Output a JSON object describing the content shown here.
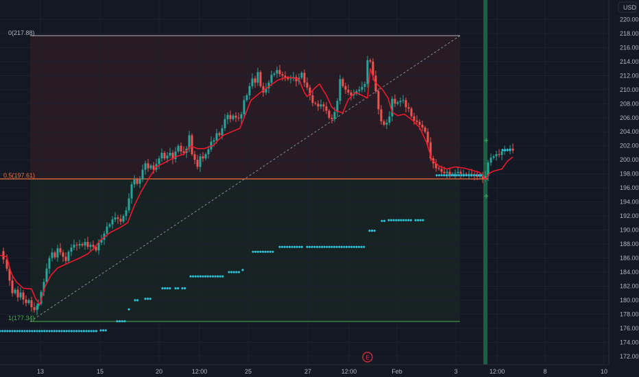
{
  "currency": "USD",
  "y_axis": {
    "ticks": [
      "172.00",
      "174.00",
      "176.00",
      "178.00",
      "180.00",
      "182.00",
      "184.00",
      "186.00",
      "188.00",
      "190.00",
      "192.00",
      "194.00",
      "196.00",
      "198.00",
      "200.00",
      "202.00",
      "204.00",
      "206.00",
      "208.00",
      "210.00",
      "212.00",
      "214.00",
      "216.00",
      "218.00",
      "220.00"
    ]
  },
  "x_axis": {
    "ticks": [
      "13",
      "15",
      "20",
      "12:00",
      "25",
      "27",
      "12:00",
      "Feb",
      "3",
      "12:00",
      "8",
      "10"
    ]
  },
  "fib": {
    "level_0": "0(217.88)",
    "level_05": "0.5(197.61)",
    "level_1": "1(177.34)"
  },
  "event_marker": "E",
  "colors": {
    "background": "#141823",
    "up": "#26a69a",
    "down": "#ef5350",
    "ma_line": "#f0192d",
    "dots": "#2fc0d6",
    "fib_top": "#b2b5be",
    "fib_mid": "#f2713c",
    "fib_bottom": "#4caf50",
    "vertical_band": "#1e5e45"
  },
  "chart_data": {
    "type": "candlestick",
    "price_range": [
      171.5,
      221.7
    ],
    "fib_levels": [
      {
        "label": "0",
        "price": 217.88
      },
      {
        "label": "0.5",
        "price": 197.61
      },
      {
        "label": "1",
        "price": 177.34
      }
    ],
    "price_path": [
      [
        0,
        187.0
      ],
      [
        5,
        185.8
      ],
      [
        10,
        184.5
      ],
      [
        14,
        182.8
      ],
      [
        18,
        181.0
      ],
      [
        22,
        181.5
      ],
      [
        26,
        180.4
      ],
      [
        30,
        181.1
      ],
      [
        34,
        180.1
      ],
      [
        38,
        179.6
      ],
      [
        42,
        180.0
      ],
      [
        46,
        179.0
      ],
      [
        50,
        178.6
      ],
      [
        54,
        179.2
      ],
      [
        56,
        179.5
      ],
      [
        60,
        181.2
      ],
      [
        64,
        182.6
      ],
      [
        68,
        184.5
      ],
      [
        72,
        186.0
      ],
      [
        76,
        186.8
      ],
      [
        80,
        186.1
      ],
      [
        84,
        187.4
      ],
      [
        88,
        186.8
      ],
      [
        92,
        186.2
      ],
      [
        96,
        185.6
      ],
      [
        100,
        186.9
      ],
      [
        104,
        187.5
      ],
      [
        108,
        187.9
      ],
      [
        112,
        187.8
      ],
      [
        116,
        188.0
      ],
      [
        120,
        187.8
      ],
      [
        124,
        188.3
      ],
      [
        128,
        187.6
      ],
      [
        132,
        187.9
      ],
      [
        136,
        187.6
      ],
      [
        140,
        187.1
      ],
      [
        144,
        188.2
      ],
      [
        148,
        188.6
      ],
      [
        152,
        189.5
      ],
      [
        156,
        190.5
      ],
      [
        160,
        190.8
      ],
      [
        164,
        191.5
      ],
      [
        168,
        191.8
      ],
      [
        172,
        191.6
      ],
      [
        176,
        191.2
      ],
      [
        180,
        192.0
      ],
      [
        184,
        192.8
      ],
      [
        188,
        194.5
      ],
      [
        192,
        196.5
      ],
      [
        196,
        197.2
      ],
      [
        200,
        196.6
      ],
      [
        204,
        197.2
      ],
      [
        208,
        198.6
      ],
      [
        212,
        199.5
      ],
      [
        216,
        198.8
      ],
      [
        220,
        199.2
      ],
      [
        224,
        198.6
      ],
      [
        228,
        199.4
      ],
      [
        232,
        200.2
      ],
      [
        236,
        201.0
      ],
      [
        240,
        200.2
      ],
      [
        244,
        200.6
      ],
      [
        248,
        201.0
      ],
      [
        252,
        200.1
      ],
      [
        256,
        201.2
      ],
      [
        260,
        202.0
      ],
      [
        264,
        201.2
      ],
      [
        268,
        201.0
      ],
      [
        272,
        201.6
      ],
      [
        276,
        203.5
      ],
      [
        280,
        200.8
      ],
      [
        284,
        200.0
      ],
      [
        288,
        199.0
      ],
      [
        292,
        200.5
      ],
      [
        296,
        200.2
      ],
      [
        300,
        200.8
      ],
      [
        304,
        201.5
      ],
      [
        308,
        202.6
      ],
      [
        312,
        202.8
      ],
      [
        316,
        203.8
      ],
      [
        320,
        203.5
      ],
      [
        324,
        204.5
      ],
      [
        328,
        205.8
      ],
      [
        332,
        206.4
      ],
      [
        336,
        205.8
      ],
      [
        340,
        206.3
      ],
      [
        344,
        206.0
      ],
      [
        348,
        205.9
      ],
      [
        352,
        206.5
      ],
      [
        356,
        208.5
      ],
      [
        360,
        209.2
      ],
      [
        364,
        210.5
      ],
      [
        368,
        211.6
      ],
      [
        372,
        211.0
      ],
      [
        376,
        212.5
      ],
      [
        380,
        210.5
      ],
      [
        384,
        209.6
      ],
      [
        388,
        210.2
      ],
      [
        392,
        211.0
      ],
      [
        396,
        212.1
      ],
      [
        400,
        212.3
      ],
      [
        404,
        212.8
      ],
      [
        408,
        212.2
      ],
      [
        412,
        212.0
      ],
      [
        416,
        211.7
      ],
      [
        420,
        211.5
      ],
      [
        424,
        211.6
      ],
      [
        428,
        211.8
      ],
      [
        432,
        211.2
      ],
      [
        436,
        211.7
      ],
      [
        440,
        212.4
      ],
      [
        444,
        211.0
      ],
      [
        448,
        210.3
      ],
      [
        452,
        209.2
      ],
      [
        456,
        208.1
      ],
      [
        460,
        208.0
      ],
      [
        464,
        207.6
      ],
      [
        468,
        207.9
      ],
      [
        472,
        207.6
      ],
      [
        476,
        207.0
      ],
      [
        480,
        206.0
      ],
      [
        484,
        205.8
      ],
      [
        488,
        206.8
      ],
      [
        492,
        208.4
      ],
      [
        496,
        211.5
      ],
      [
        500,
        210.5
      ],
      [
        504,
        210.0
      ],
      [
        508,
        209.6
      ],
      [
        512,
        209.2
      ],
      [
        516,
        209.4
      ],
      [
        520,
        209.8
      ],
      [
        524,
        210.0
      ],
      [
        528,
        210.4
      ],
      [
        532,
        210.8
      ],
      [
        536,
        214.2
      ],
      [
        540,
        214.0
      ],
      [
        544,
        212.0
      ],
      [
        548,
        209.8
      ],
      [
        552,
        207.2
      ],
      [
        556,
        205.5
      ],
      [
        560,
        205.0
      ],
      [
        564,
        205.3
      ],
      [
        568,
        206.2
      ],
      [
        572,
        208.7
      ],
      [
        576,
        208.0
      ],
      [
        580,
        208.2
      ],
      [
        584,
        208.4
      ],
      [
        588,
        208.5
      ],
      [
        592,
        207.5
      ],
      [
        596,
        207.3
      ],
      [
        600,
        206.2
      ],
      [
        604,
        205.6
      ],
      [
        608,
        205.4
      ],
      [
        612,
        205.0
      ],
      [
        616,
        204.6
      ],
      [
        620,
        204.0
      ],
      [
        624,
        202.5
      ],
      [
        628,
        200.2
      ],
      [
        632,
        199.5
      ],
      [
        636,
        198.8
      ],
      [
        640,
        198.7
      ],
      [
        644,
        198.3
      ],
      [
        648,
        198.1
      ],
      [
        652,
        198.3
      ],
      [
        656,
        197.9
      ],
      [
        660,
        198.0
      ],
      [
        664,
        198.1
      ],
      [
        668,
        198.3
      ],
      [
        672,
        198.0
      ],
      [
        676,
        198.0
      ],
      [
        680,
        197.9
      ],
      [
        684,
        198.0
      ],
      [
        688,
        197.9
      ],
      [
        692,
        197.8
      ],
      [
        696,
        197.6
      ],
      [
        700,
        197.8
      ],
      [
        704,
        197.3
      ],
      [
        708,
        197.7
      ],
      [
        712,
        199.6
      ],
      [
        716,
        200.3
      ],
      [
        720,
        200.5
      ],
      [
        724,
        200.8
      ],
      [
        728,
        200.7
      ],
      [
        732,
        201.2
      ],
      [
        736,
        201.4
      ],
      [
        740,
        201.4
      ],
      [
        744,
        201.6
      ],
      [
        748,
        201.3
      ]
    ],
    "ma_path": [
      [
        0,
        186.4
      ],
      [
        10,
        186.2
      ],
      [
        14,
        184.6
      ],
      [
        18,
        183.5
      ],
      [
        24,
        182.6
      ],
      [
        34,
        181.7
      ],
      [
        46,
        181.6
      ],
      [
        52,
        180.2
      ],
      [
        58,
        179.4
      ],
      [
        66,
        182.0
      ],
      [
        74,
        183.5
      ],
      [
        84,
        184.6
      ],
      [
        100,
        185.3
      ],
      [
        116,
        186.0
      ],
      [
        128,
        186.6
      ],
      [
        136,
        187.3
      ],
      [
        146,
        188.5
      ],
      [
        160,
        189.6
      ],
      [
        174,
        190.3
      ],
      [
        186,
        191.0
      ],
      [
        196,
        193.5
      ],
      [
        206,
        195.5
      ],
      [
        218,
        197.5
      ],
      [
        228,
        199.0
      ],
      [
        242,
        199.7
      ],
      [
        258,
        200.5
      ],
      [
        268,
        200.8
      ],
      [
        278,
        202.0
      ],
      [
        288,
        201.6
      ],
      [
        298,
        201.6
      ],
      [
        312,
        202.1
      ],
      [
        318,
        202.8
      ],
      [
        326,
        203.5
      ],
      [
        338,
        204.0
      ],
      [
        350,
        204.5
      ],
      [
        356,
        206.0
      ],
      [
        366,
        208.5
      ],
      [
        380,
        209.6
      ],
      [
        394,
        210.6
      ],
      [
        406,
        211.4
      ],
      [
        420,
        211.8
      ],
      [
        436,
        211.5
      ],
      [
        440,
        210.5
      ],
      [
        444,
        209.6
      ],
      [
        448,
        209.0
      ],
      [
        460,
        210.3
      ],
      [
        466,
        210.8
      ],
      [
        476,
        209.2
      ],
      [
        484,
        207.5
      ],
      [
        490,
        207.0
      ],
      [
        500,
        206.7
      ],
      [
        508,
        208.6
      ],
      [
        518,
        209.6
      ],
      [
        528,
        209.2
      ],
      [
        536,
        208.8
      ],
      [
        540,
        213.0
      ],
      [
        546,
        211.2
      ],
      [
        558,
        210.0
      ],
      [
        566,
        208.8
      ],
      [
        572,
        206.8
      ],
      [
        580,
        206.3
      ],
      [
        590,
        206.5
      ],
      [
        602,
        205.6
      ],
      [
        612,
        204.6
      ],
      [
        622,
        202.5
      ],
      [
        630,
        200.0
      ],
      [
        642,
        199.0
      ],
      [
        652,
        198.7
      ],
      [
        664,
        199.0
      ],
      [
        678,
        198.8
      ],
      [
        700,
        198.2
      ],
      [
        708,
        197.2
      ],
      [
        714,
        198.1
      ],
      [
        720,
        198.4
      ],
      [
        732,
        198.7
      ],
      [
        740,
        199.8
      ],
      [
        748,
        200.4
      ]
    ],
    "dot_segments": [
      {
        "x": [
          0,
          142
        ],
        "price": 175.6
      },
      {
        "x": [
          147,
          155
        ],
        "price": 175.7
      },
      {
        "x": [
          171,
          185
        ],
        "price": 177.0
      },
      {
        "x": [
          188,
          191
        ],
        "price": 178.7
      },
      {
        "x": [
          197,
          203
        ],
        "price": 180.0
      },
      {
        "x": [
          212,
          220
        ],
        "price": 180.2
      },
      {
        "x": [
          237,
          250
        ],
        "price": 181.7
      },
      {
        "x": [
          256,
          260
        ],
        "price": 181.7
      },
      {
        "x": [
          266,
          272
        ],
        "price": 181.7
      },
      {
        "x": [
          278,
          326
        ],
        "price": 183.4
      },
      {
        "x": [
          334,
          352
        ],
        "price": 184.0
      },
      {
        "x": [
          354,
          356
        ],
        "price": 184.3
      },
      {
        "x": [
          369,
          400
        ],
        "price": 186.9
      },
      {
        "x": [
          408,
          442
        ],
        "price": 187.6
      },
      {
        "x": [
          448,
          532
        ],
        "price": 187.6
      },
      {
        "x": [
          539,
          548
        ],
        "price": 189.9
      },
      {
        "x": [
          557,
          562
        ],
        "price": 191.3
      },
      {
        "x": [
          567,
          600
        ],
        "price": 191.4
      },
      {
        "x": [
          606,
          620
        ],
        "price": 191.4
      },
      {
        "x": [
          637,
          705
        ],
        "price": 197.8
      },
      {
        "x": [
          733,
          747
        ],
        "price": 201.4
      }
    ],
    "vertical_band_x": 708
  }
}
